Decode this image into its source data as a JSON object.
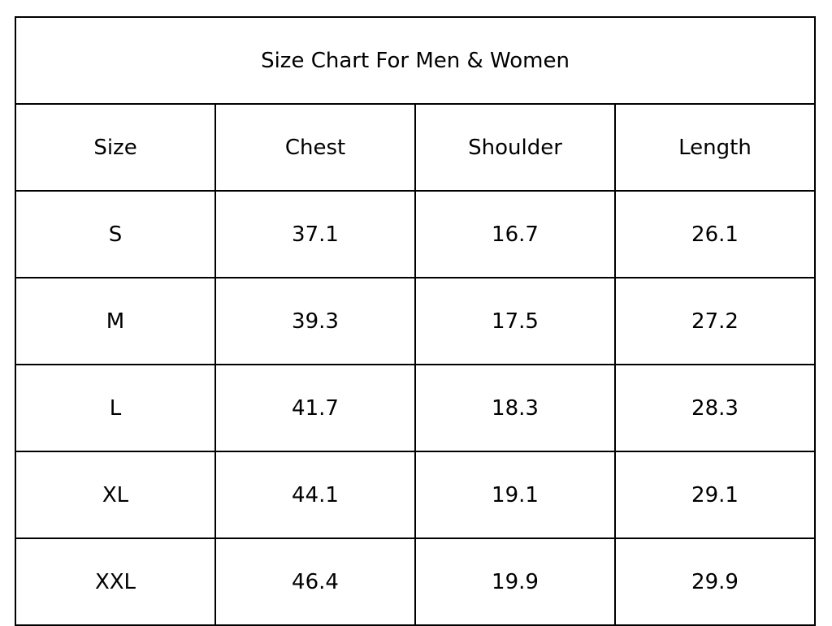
{
  "table": {
    "title": "Size Chart For Men & Women",
    "header": [
      "Size",
      "Chest",
      "Shoulder",
      "Length"
    ],
    "rows": [
      [
        "S",
        "37.1",
        "16.7",
        "26.1"
      ],
      [
        "M",
        "39.3",
        "17.5",
        "27.2"
      ],
      [
        "L",
        "41.7",
        "18.3",
        "28.3"
      ],
      [
        "XL",
        "44.1",
        "19.1",
        "29.1"
      ],
      [
        "XXL",
        "46.4",
        "19.9",
        "29.9"
      ]
    ]
  }
}
